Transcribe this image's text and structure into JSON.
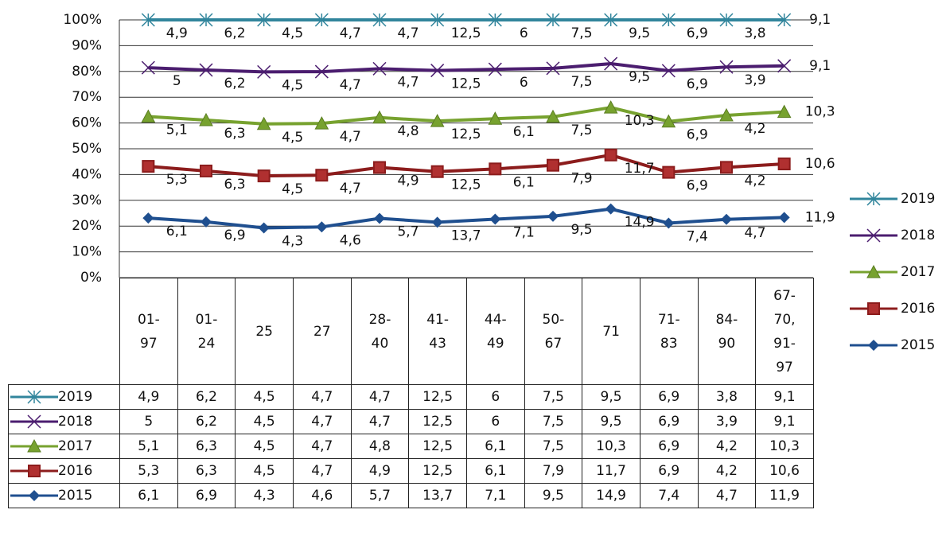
{
  "chart_data": {
    "type": "line",
    "stacked": "percent",
    "categories": [
      "01-97",
      "01-24",
      "25",
      "27",
      "28-40",
      "41-43",
      "44-49",
      "50-67",
      "71",
      "71-83",
      "84-90",
      "67-70, 91-97"
    ],
    "ylim": [
      0,
      100
    ],
    "yticks": [
      {
        "value": 0,
        "label": "0%"
      },
      {
        "value": 10,
        "label": "10%"
      },
      {
        "value": 20,
        "label": "20%"
      },
      {
        "value": 30,
        "label": "30%"
      },
      {
        "value": 40,
        "label": "40%"
      },
      {
        "value": 50,
        "label": "50%"
      },
      {
        "value": 60,
        "label": "60%"
      },
      {
        "value": 70,
        "label": "70%"
      },
      {
        "value": 80,
        "label": "80%"
      },
      {
        "value": 90,
        "label": "90%"
      },
      {
        "value": 100,
        "label": "100%"
      }
    ],
    "grid": true,
    "series": [
      {
        "name": "2019",
        "color": "#31859c",
        "marker": "asterisk",
        "values": [
          4.9,
          6.2,
          4.5,
          4.7,
          4.7,
          12.5,
          6,
          7.5,
          9.5,
          6.9,
          3.8,
          9.1
        ],
        "value_labels": [
          "4,9",
          "6,2",
          "4,5",
          "4,7",
          "4,7",
          "12,5",
          "6",
          "7,5",
          "9,5",
          "6,9",
          "3,8",
          "9,1"
        ]
      },
      {
        "name": "2018",
        "color": "#4b1d6f",
        "marker": "x",
        "values": [
          5,
          6.2,
          4.5,
          4.7,
          4.7,
          12.5,
          6,
          7.5,
          9.5,
          6.9,
          3.9,
          9.1
        ],
        "value_labels": [
          "5",
          "6,2",
          "4,5",
          "4,7",
          "4,7",
          "12,5",
          "6",
          "7,5",
          "9,5",
          "6,9",
          "3,9",
          "9,1"
        ]
      },
      {
        "name": "2017",
        "color": "#77a22f",
        "marker": "triangle",
        "values": [
          5.1,
          6.3,
          4.5,
          4.7,
          4.8,
          12.5,
          6.1,
          7.5,
          10.3,
          6.9,
          4.2,
          10.3
        ],
        "value_labels": [
          "5,1",
          "6,3",
          "4,5",
          "4,7",
          "4,8",
          "12,5",
          "6,1",
          "7,5",
          "10,3",
          "6,9",
          "4,2",
          "10,3"
        ]
      },
      {
        "name": "2016",
        "color": "#8c1c1c",
        "marker": "square",
        "values": [
          5.3,
          6.3,
          4.5,
          4.7,
          4.9,
          12.5,
          6.1,
          7.9,
          11.7,
          6.9,
          4.2,
          10.6
        ],
        "value_labels": [
          "5,3",
          "6,3",
          "4,5",
          "4,7",
          "4,9",
          "12,5",
          "6,1",
          "7,9",
          "11,7",
          "6,9",
          "4,2",
          "10,6"
        ]
      },
      {
        "name": "2015",
        "color": "#1f4f8f",
        "marker": "diamond",
        "values": [
          6.1,
          6.9,
          4.3,
          4.6,
          5.7,
          13.7,
          7.1,
          9.5,
          14.9,
          7.4,
          4.7,
          11.9
        ],
        "value_labels": [
          "6,1",
          "6,9",
          "4,3",
          "4,6",
          "5,7",
          "13,7",
          "7,1",
          "9,5",
          "14,9",
          "7,4",
          "4,7",
          "11,9"
        ]
      }
    ]
  }
}
